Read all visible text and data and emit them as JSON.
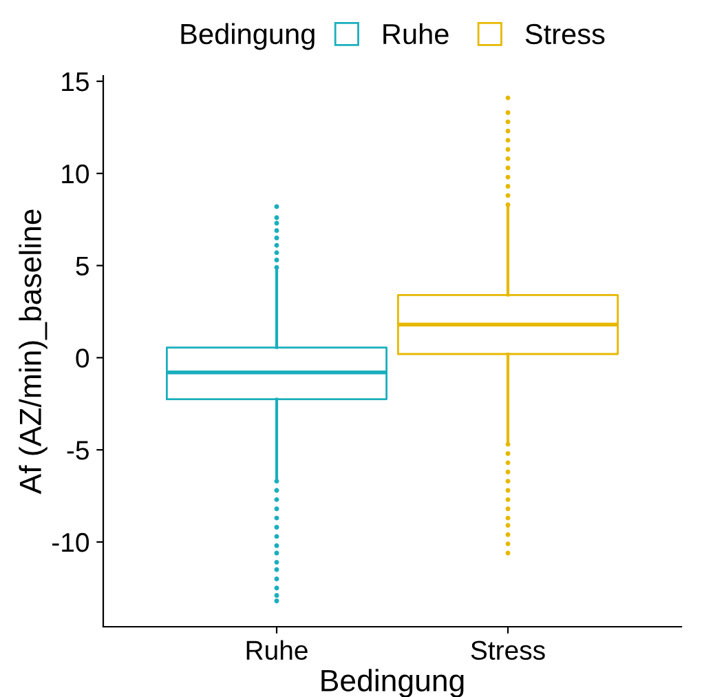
{
  "chart_data": {
    "type": "box",
    "xlabel": "Bedingung",
    "ylabel": "Af (AZ/min)_baseline",
    "legend_title": "Bedingung",
    "legend": "top",
    "grid": false,
    "categories": [
      "Ruhe",
      "Stress"
    ],
    "ylim": [
      -14.6,
      15.3
    ],
    "yticks": [
      -10,
      -5,
      0,
      5,
      10,
      15
    ],
    "series": [
      {
        "name": "Ruhe",
        "color": "#1aaebd",
        "boxes": [
          {
            "low": -6.6,
            "q1": -2.25,
            "median": -0.8,
            "q3": 0.55,
            "high": 4.8,
            "outliers": [
              4.9,
              5.3,
              5.7,
              6.1,
              6.5,
              6.9,
              7.3,
              7.6,
              8.2,
              -6.7,
              -7.2,
              -7.7,
              -8.2,
              -8.7,
              -9.2,
              -9.7,
              -10.2,
              -10.6,
              -11.1,
              -11.5,
              -12.0,
              -12.5,
              -12.9,
              -13.2
            ]
          },
          null
        ]
      },
      {
        "name": "Stress",
        "color": "#e6b800",
        "boxes": [
          null,
          {
            "low": -4.6,
            "q1": 0.2,
            "median": 1.8,
            "q3": 3.4,
            "high": 8.2,
            "outliers": [
              8.3,
              8.8,
              9.3,
              9.8,
              10.3,
              10.8,
              11.3,
              11.8,
              12.3,
              12.8,
              13.3,
              14.1,
              -4.7,
              -5.2,
              -5.7,
              -6.2,
              -6.7,
              -7.2,
              -7.7,
              -8.2,
              -8.7,
              -9.1,
              -9.6,
              -10.1,
              -10.6
            ]
          }
        ]
      }
    ]
  }
}
